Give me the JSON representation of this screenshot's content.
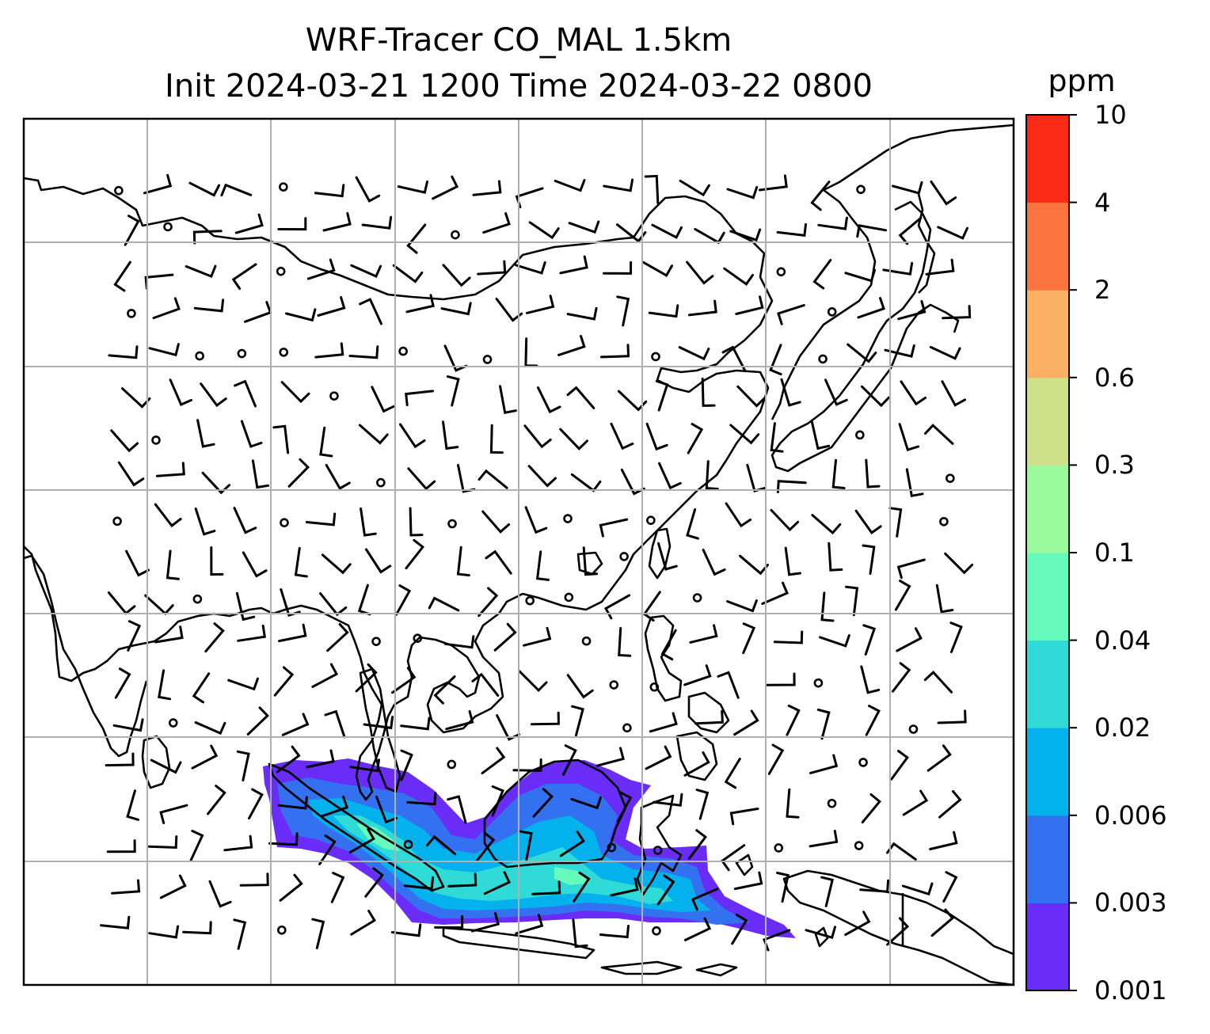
{
  "title": {
    "line1": "WRF-Tracer CO_MAL 1.5km",
    "line2": "Init 2024-03-21 1200 Time 2024-03-22 0800"
  },
  "colorbar": {
    "unit": "ppm",
    "levels": [
      "0.001",
      "0.003",
      "0.006",
      "0.02",
      "0.04",
      "0.1",
      "0.3",
      "0.6",
      "2",
      "4",
      "10"
    ],
    "colors": [
      "#6a2cf7",
      "#3471f1",
      "#03b1ec",
      "#30dbd7",
      "#66fbbc",
      "#9bfb9c",
      "#cee08a",
      "#fbb163",
      "#fb733f",
      "#fb2a15"
    ]
  },
  "map": {
    "coastline_color": "#000000",
    "gridline_color": "#b0b0b0",
    "wind_barb_color": "#000000",
    "plume": {
      "low_color": "#6a2cf7",
      "mid_color": "#3471f1",
      "high_color": "#03b1ec",
      "peak_color": "#30dbd7",
      "max_color": "#66fbbc"
    }
  }
}
